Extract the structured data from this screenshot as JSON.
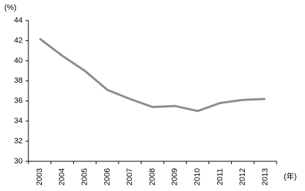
{
  "chart_data": {
    "type": "line",
    "y_unit_label": "(%)",
    "x_unit_label": "(年)",
    "categories": [
      "2003",
      "2004",
      "2005",
      "2006",
      "2007",
      "2008",
      "2009",
      "2010",
      "2011",
      "2012",
      "2013"
    ],
    "values": [
      42.2,
      40.5,
      39.0,
      37.1,
      36.2,
      35.4,
      35.5,
      35.0,
      35.8,
      36.1,
      36.2
    ],
    "color": "#8c8c8c",
    "ylim": [
      30,
      44
    ],
    "yticks": [
      30,
      32,
      34,
      36,
      38,
      40,
      42,
      44
    ],
    "grid": false
  }
}
